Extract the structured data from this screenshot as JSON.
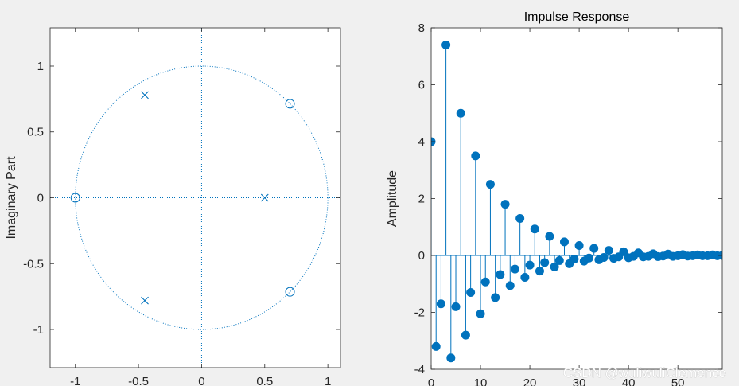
{
  "colors": {
    "figure_bg": "#f0f0f0",
    "axes_bg": "#ffffff",
    "axis_line": "#262626",
    "series": "#0072bd"
  },
  "watermark": "CSDN @wuliwuliClemence",
  "chart_data": [
    {
      "type": "scatter",
      "subtype": "pole-zero-plot",
      "title": "",
      "xlabel": "",
      "ylabel": "Imaginary Part",
      "xlim": [
        -1.2,
        1.1
      ],
      "ylim": [
        -1.29,
        1.29
      ],
      "xticks": [
        -1,
        -0.5,
        0,
        0.5,
        1
      ],
      "xtick_labels": [
        "-1",
        "-0.5",
        "0",
        "0.5",
        "1"
      ],
      "yticks": [
        -1,
        -0.5,
        0,
        0.5,
        1
      ],
      "ytick_labels": [
        "-1",
        "-0.5",
        "0",
        "0.5",
        "1"
      ],
      "unit_circle": true,
      "grid": false,
      "zeros": [
        [
          -1,
          0
        ],
        [
          0.7,
          0.714
        ],
        [
          0.7,
          -0.714
        ]
      ],
      "poles": [
        [
          -0.45,
          0.78
        ],
        [
          -0.45,
          -0.78
        ],
        [
          0.5,
          0
        ]
      ]
    },
    {
      "type": "stem",
      "title": "Impulse Response",
      "xlabel": "",
      "ylabel": "Amplitude",
      "xlim": [
        0,
        59
      ],
      "ylim": [
        -4,
        8
      ],
      "xticks": [
        0,
        10,
        20,
        30,
        40,
        50
      ],
      "xtick_labels": [
        "0",
        "10",
        "20",
        "30",
        "40",
        "50"
      ],
      "yticks": [
        -4,
        -2,
        0,
        2,
        4,
        6,
        8
      ],
      "ytick_labels": [
        "-4",
        "-2",
        "0",
        "2",
        "4",
        "6",
        "8"
      ],
      "grid": false,
      "x": [
        0,
        1,
        2,
        3,
        4,
        5,
        6,
        7,
        8,
        9,
        10,
        11,
        12,
        13,
        14,
        15,
        16,
        17,
        18,
        19,
        20,
        21,
        22,
        23,
        24,
        25,
        26,
        27,
        28,
        29,
        30,
        31,
        32,
        33,
        34,
        35,
        36,
        37,
        38,
        39,
        40,
        41,
        42,
        43,
        44,
        45,
        46,
        47,
        48,
        49,
        50,
        51,
        52,
        53,
        54,
        55,
        56,
        57,
        58,
        59
      ],
      "values": [
        4.0,
        -3.2,
        -1.7,
        7.4,
        -3.6,
        -1.8,
        5.0,
        -2.8,
        -1.3,
        3.5,
        -2.05,
        -0.93,
        2.5,
        -1.48,
        -0.67,
        1.8,
        -1.06,
        -0.48,
        1.3,
        -0.77,
        -0.34,
        0.93,
        -0.55,
        -0.25,
        0.67,
        -0.4,
        -0.18,
        0.48,
        -0.29,
        -0.13,
        0.35,
        -0.2,
        -0.09,
        0.25,
        -0.15,
        -0.07,
        0.18,
        -0.1,
        -0.05,
        0.13,
        -0.08,
        -0.03,
        0.09,
        -0.05,
        -0.03,
        0.06,
        -0.04,
        -0.02,
        0.05,
        -0.03,
        -0.01,
        0.03,
        -0.02,
        -0.01,
        0.02,
        -0.01,
        -0.01,
        0.02,
        -0.01,
        0.0
      ]
    }
  ]
}
